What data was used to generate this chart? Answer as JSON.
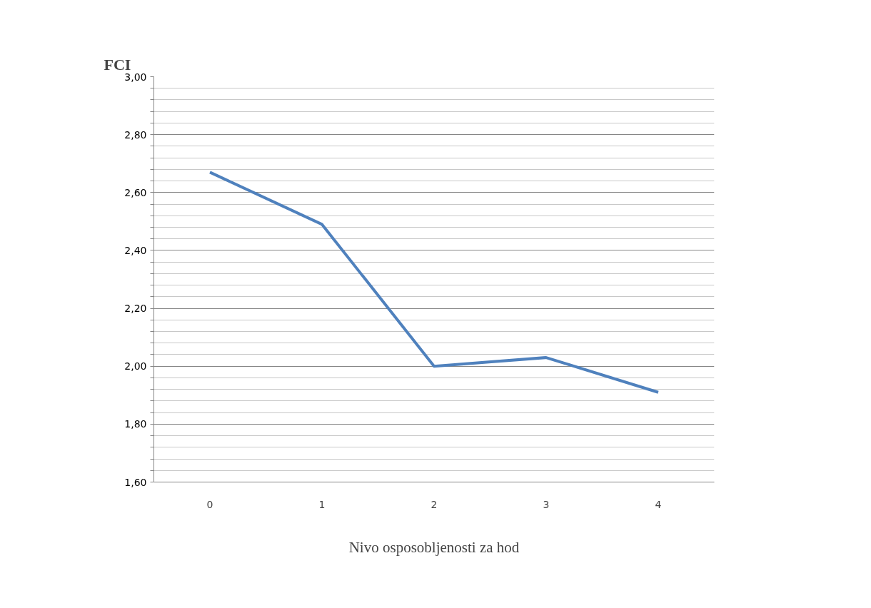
{
  "chart_data": {
    "type": "line",
    "ylabel": "FCI",
    "xlabel": "Nivo osposobljenosti za hod",
    "categories": [
      "0",
      "1",
      "2",
      "3",
      "4"
    ],
    "series": [
      {
        "color": "#4f81bd",
        "values": [
          2.67,
          2.49,
          2.0,
          2.03,
          1.91
        ]
      }
    ],
    "ylim": [
      1.6,
      3.0
    ],
    "yticks": [
      {
        "value": 1.6,
        "label": "1,60"
      },
      {
        "value": 1.8,
        "label": "1,80"
      },
      {
        "value": 2.0,
        "label": "2,00"
      },
      {
        "value": 2.2,
        "label": "2,20"
      },
      {
        "value": 2.4,
        "label": "2,40"
      },
      {
        "value": 2.6,
        "label": "2,60"
      },
      {
        "value": 2.8,
        "label": "2,80"
      },
      {
        "value": 3.0,
        "label": "3,00"
      }
    ],
    "grid": "y",
    "marker": "none",
    "line_style": "solid"
  }
}
